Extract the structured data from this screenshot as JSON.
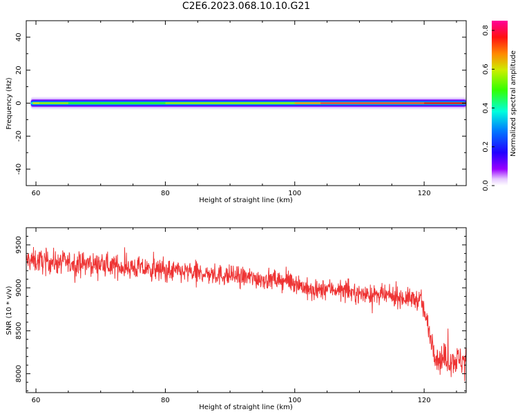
{
  "page_title": "C2E6.2023.068.10.10.G21",
  "chart_data": [
    {
      "type": "heatmap",
      "xlabel": "Height of straight line (km)",
      "ylabel": "Frequency (Hz)",
      "xlim": [
        58.5,
        126.5
      ],
      "ylim": [
        -50,
        50
      ],
      "x_ticks": [
        60,
        80,
        100,
        120
      ],
      "y_ticks": [
        40,
        20,
        0,
        -20,
        -40
      ],
      "band": {
        "frequency_hz": 0,
        "x_start_km": 59.2,
        "x_end_km": 126.5,
        "peak_amplitude_by_height": [
          [
            59.5,
            0.62
          ],
          [
            60.5,
            0.7
          ],
          [
            65,
            0.6
          ],
          [
            70,
            0.58
          ],
          [
            80,
            0.6
          ],
          [
            90,
            0.62
          ],
          [
            100,
            0.66
          ],
          [
            104,
            0.74
          ],
          [
            110,
            0.78
          ],
          [
            120,
            0.8
          ],
          [
            126.5,
            0.82
          ]
        ]
      },
      "colorbar": {
        "label": "Normalized spectral amplitude",
        "range": [
          0,
          0.85
        ],
        "ticks": [
          "0.0",
          "0.2",
          "0.4",
          "0.6",
          "0.8"
        ],
        "colormap": "rainbow"
      },
      "grid": false
    },
    {
      "type": "line",
      "xlabel": "Height of straight line (km)",
      "ylabel": "SNR (10 * v/v)",
      "xlim": [
        58.5,
        126.5
      ],
      "ylim": [
        7780,
        9700
      ],
      "x_ticks": [
        60,
        80,
        100,
        120
      ],
      "y_ticks": [
        9500,
        9000,
        8500,
        8000
      ],
      "color": "#ee3333",
      "grid": false,
      "trend": [
        {
          "height_km": 58.5,
          "snr": 9320,
          "noise": 130
        },
        {
          "height_km": 70,
          "snr": 9270,
          "noise": 120
        },
        {
          "height_km": 80,
          "snr": 9200,
          "noise": 120
        },
        {
          "height_km": 90,
          "snr": 9140,
          "noise": 110
        },
        {
          "height_km": 100,
          "snr": 9070,
          "noise": 110
        },
        {
          "height_km": 103,
          "snr": 8940,
          "noise": 110
        },
        {
          "height_km": 105,
          "snr": 9000,
          "noise": 100
        },
        {
          "height_km": 110,
          "snr": 8930,
          "noise": 100
        },
        {
          "height_km": 115,
          "snr": 8900,
          "noise": 100
        },
        {
          "height_km": 119.5,
          "snr": 8860,
          "noise": 110
        },
        {
          "height_km": 120.5,
          "snr": 8580,
          "noise": 120
        },
        {
          "height_km": 122,
          "snr": 8180,
          "noise": 160
        },
        {
          "height_km": 126.5,
          "snr": 8150,
          "noise": 160
        }
      ]
    }
  ]
}
